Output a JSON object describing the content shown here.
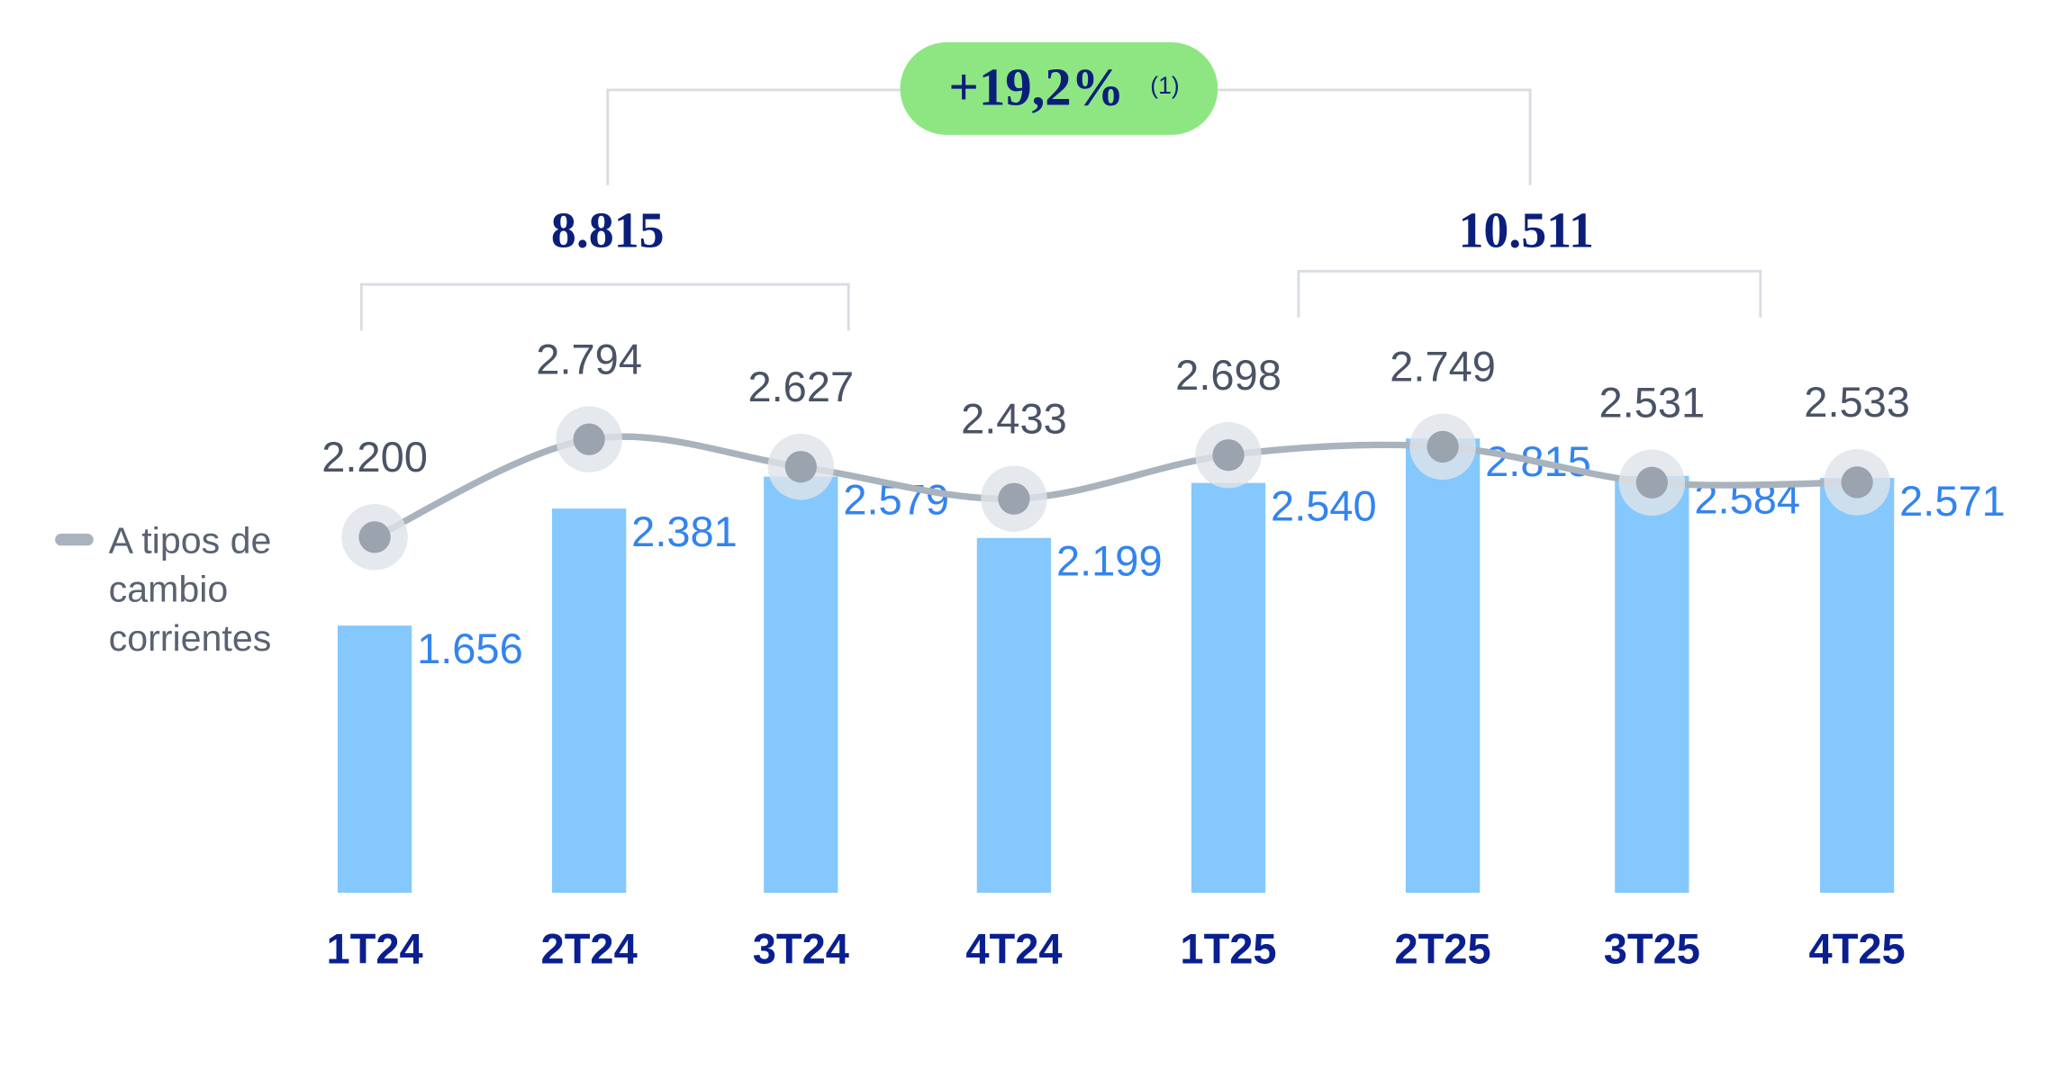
{
  "chart_data": {
    "type": "bar",
    "categories": [
      "1T24",
      "2T24",
      "3T24",
      "4T24",
      "1T25",
      "2T25",
      "3T25",
      "4T25"
    ],
    "series": [
      {
        "type": "bar",
        "color": "#85c8fd",
        "label_color": "#3384ee",
        "values": [
          1656,
          2381,
          2579,
          2199,
          2540,
          2815,
          2584,
          2571
        ],
        "value_labels": [
          "1.656",
          "2.381",
          "2.579",
          "2.199",
          "2.540",
          "2.815",
          "2.584",
          "2.571"
        ]
      },
      {
        "type": "line",
        "name": "A tipos de cambio corrientes",
        "color": "#a9b3bd",
        "label_color": "#4a5366",
        "values": [
          2200,
          2794,
          2627,
          2433,
          2698,
          2749,
          2531,
          2533
        ],
        "value_labels": [
          "2.200",
          "2.794",
          "2.627",
          "2.433",
          "2.698",
          "2.749",
          "2.531",
          "2.533"
        ]
      }
    ],
    "totals": [
      "8.815",
      "10.511"
    ],
    "growth": "+19,2%",
    "growth_note": "(1)"
  }
}
